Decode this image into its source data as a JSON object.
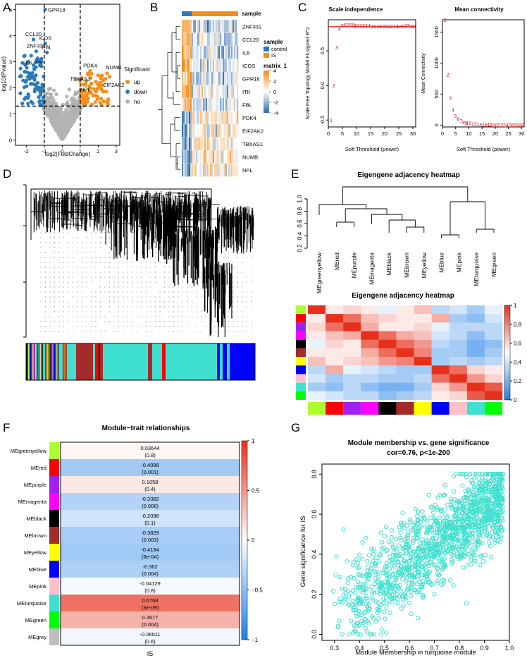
{
  "panels": {
    "A": "A",
    "B": "B",
    "C": "C",
    "D": "D",
    "E": "E",
    "F": "F",
    "G": "G"
  },
  "chart_data": [
    {
      "panel": "A",
      "type": "scatter",
      "xlabel": "log2(FoldChange)",
      "ylabel": "-log10(Pvalue)",
      "xlim": [
        -2.6,
        3.2
      ],
      "ylim": [
        -0.2,
        5.2
      ],
      "xticks": [
        "-2",
        "-1",
        "0",
        "1",
        "2",
        "3"
      ],
      "yticks": [
        "0",
        "1",
        "2",
        "3",
        "4",
        "5"
      ],
      "thresholds": {
        "x": [
          -1,
          1
        ],
        "y": 1.3
      },
      "legend": {
        "title": "Significant",
        "entries": [
          {
            "name": "up",
            "color": "#f28e1c"
          },
          {
            "name": "down",
            "color": "#2b7bba"
          },
          {
            "name": "no",
            "color": "#b3b3b3"
          }
        ]
      },
      "labels": [
        {
          "text": "GPR18",
          "x": -0.95,
          "y": 5.0
        },
        {
          "text": "CCL20",
          "x": -1.6,
          "y": 3.85
        },
        {
          "text": "ICOS",
          "x": -0.95,
          "y": 3.7
        },
        {
          "text": "ZNF331",
          "x": -1.45,
          "y": 3.4
        },
        {
          "text": "FBL",
          "x": -0.85,
          "y": 3.35
        },
        {
          "text": "IL6",
          "x": -1.9,
          "y": 3.0
        },
        {
          "text": "ITK",
          "x": -1.35,
          "y": 3.0
        },
        {
          "text": "PDK4",
          "x": 1.55,
          "y": 2.65
        },
        {
          "text": "NUMB",
          "x": 2.5,
          "y": 2.55
        },
        {
          "text": "TBXAS1",
          "x": 1.0,
          "y": 2.25
        },
        {
          "text": "EIF2AK2",
          "x": 2.2,
          "y": 2.1
        },
        {
          "text": "NPL",
          "x": 1.5,
          "y": 1.95
        }
      ]
    },
    {
      "panel": "B",
      "type": "heatmap",
      "rows": [
        "ZNF331",
        "CCL20",
        "IL6",
        "ICOS",
        "GPR18",
        "ITK",
        "FBL",
        "PDK4",
        "EIF2AK2",
        "TBXAS1",
        "NUMB",
        "NPL"
      ],
      "annotation": {
        "title": "sample",
        "entries": [
          {
            "name": "control",
            "color": "#2b7bba"
          },
          {
            "name": "IS",
            "color": "#f28e1c"
          }
        ]
      },
      "colorbar": {
        "title": "matrix_1",
        "ticks": [
          "4",
          "2",
          "0",
          "-2",
          "-4"
        ]
      }
    },
    {
      "panel": "C1",
      "type": "scatter",
      "title": "Scale independence",
      "xlabel": "Soft Threshold (power)",
      "ylabel": "Scale Free Topology Model Fit,signed R^2",
      "xticks": [
        "0",
        "5",
        "10",
        "15",
        "20",
        "25",
        "30"
      ],
      "yticks": [
        "-0.5",
        "0.0",
        "0.5"
      ],
      "xlim": [
        0,
        31
      ],
      "ylim": [
        -0.6,
        0.95
      ],
      "hline": 0.85,
      "points": [
        {
          "x": 1,
          "y": -0.5
        },
        {
          "x": 2,
          "y": 0.0
        },
        {
          "x": 3,
          "y": 0.55
        },
        {
          "x": 4,
          "y": 0.82
        },
        {
          "x": 5,
          "y": 0.87
        },
        {
          "x": 6,
          "y": 0.88
        },
        {
          "x": 7,
          "y": 0.88
        },
        {
          "x": 8,
          "y": 0.88
        },
        {
          "x": 9,
          "y": 0.88
        },
        {
          "x": 10,
          "y": 0.87
        },
        {
          "x": 12,
          "y": 0.87
        },
        {
          "x": 14,
          "y": 0.87
        },
        {
          "x": 16,
          "y": 0.86
        },
        {
          "x": 18,
          "y": 0.86
        },
        {
          "x": 20,
          "y": 0.86
        },
        {
          "x": 22,
          "y": 0.86
        },
        {
          "x": 24,
          "y": 0.86
        },
        {
          "x": 26,
          "y": 0.86
        },
        {
          "x": 28,
          "y": 0.87
        },
        {
          "x": 30,
          "y": 0.86
        }
      ]
    },
    {
      "panel": "C2",
      "type": "scatter",
      "title": "Mean connectivity",
      "xlabel": "Soft Threshold (power)",
      "ylabel": "Mean Connectivity",
      "xticks": [
        "0",
        "5",
        "10",
        "15",
        "20",
        "25",
        "30"
      ],
      "yticks": [
        "0",
        "500",
        "1000",
        "1500"
      ],
      "xlim": [
        0,
        31
      ],
      "ylim": [
        -30,
        1700
      ],
      "points": [
        {
          "x": 1,
          "y": 1700
        },
        {
          "x": 2,
          "y": 820
        },
        {
          "x": 3,
          "y": 440
        },
        {
          "x": 4,
          "y": 250
        },
        {
          "x": 5,
          "y": 150
        },
        {
          "x": 6,
          "y": 100
        },
        {
          "x": 7,
          "y": 70
        },
        {
          "x": 8,
          "y": 50
        },
        {
          "x": 9,
          "y": 40
        },
        {
          "x": 10,
          "y": 30
        },
        {
          "x": 12,
          "y": 20
        },
        {
          "x": 14,
          "y": 15
        },
        {
          "x": 16,
          "y": 10
        },
        {
          "x": 18,
          "y": 8
        },
        {
          "x": 20,
          "y": 6
        },
        {
          "x": 22,
          "y": 5
        },
        {
          "x": 24,
          "y": 4
        },
        {
          "x": 26,
          "y": 3
        },
        {
          "x": 28,
          "y": 2
        },
        {
          "x": 30,
          "y": 2
        }
      ]
    },
    {
      "panel": "E1",
      "type": "dendrogram",
      "title": "Eigengene adjacency heatmap",
      "yticks": [
        "0.2",
        "0.4",
        "0.6",
        "0.8",
        "1.0"
      ],
      "leaves": [
        "MEgreenyellow",
        "MEred",
        "MEpurple",
        "MEmagenta",
        "MEblack",
        "MEbrown",
        "MEyellow",
        "MEblue",
        "MEpink",
        "MEturquoise",
        "MEgreen"
      ]
    },
    {
      "panel": "E2",
      "type": "heatmap",
      "title": "Eigengene adjacency heatmap",
      "module_colors": [
        "#adff2f",
        "#ff0000",
        "#a020f0",
        "#ff00ff",
        "#000000",
        "#a52a2a",
        "#ffff00",
        "#0000ff",
        "#ffc0cb",
        "#40e0d0",
        "#00ff00"
      ],
      "colorbar": {
        "ticks": [
          "1",
          "0.8",
          "0.6",
          "0.4",
          "0.2",
          "0"
        ]
      },
      "matrix": [
        [
          1,
          0.55,
          0.6,
          0.55,
          0.45,
          0.55,
          0.65,
          0.35,
          0.4,
          0.3,
          0.45
        ],
        [
          0.55,
          1,
          0.85,
          0.65,
          0.6,
          0.55,
          0.55,
          0.7,
          0.3,
          0.25,
          0.4
        ],
        [
          0.6,
          0.85,
          1,
          0.7,
          0.55,
          0.55,
          0.6,
          0.45,
          0.35,
          0.35,
          0.35
        ],
        [
          0.55,
          0.65,
          0.7,
          1,
          0.85,
          0.7,
          0.65,
          0.4,
          0.35,
          0.25,
          0.35
        ],
        [
          0.45,
          0.6,
          0.55,
          0.85,
          1,
          0.85,
          0.75,
          0.35,
          0.3,
          0.2,
          0.25
        ],
        [
          0.55,
          0.55,
          0.55,
          0.7,
          0.85,
          1,
          0.8,
          0.3,
          0.3,
          0.2,
          0.3
        ],
        [
          0.65,
          0.55,
          0.6,
          0.65,
          0.75,
          0.8,
          1,
          0.3,
          0.35,
          0.3,
          0.35
        ],
        [
          0.35,
          0.7,
          0.45,
          0.4,
          0.35,
          0.3,
          0.3,
          1,
          0.85,
          0.6,
          0.55
        ],
        [
          0.4,
          0.3,
          0.35,
          0.35,
          0.3,
          0.3,
          0.35,
          0.85,
          1,
          0.75,
          0.6
        ],
        [
          0.3,
          0.25,
          0.35,
          0.25,
          0.2,
          0.2,
          0.3,
          0.6,
          0.75,
          1,
          0.9
        ],
        [
          0.45,
          0.4,
          0.35,
          0.35,
          0.25,
          0.3,
          0.35,
          0.55,
          0.6,
          0.9,
          1
        ]
      ]
    },
    {
      "panel": "F",
      "type": "heatmap",
      "title": "Module−trait relationships",
      "xlabel": "IS",
      "colorbar": {
        "ticks": [
          "1",
          "0.5",
          "0",
          "−0.5",
          "−1"
        ]
      },
      "rows": [
        {
          "module": "MEgreenyellow",
          "color": "#adff2f",
          "cor": "0.03644",
          "p": "(0.8)",
          "value": 0.03644
        },
        {
          "module": "MEred",
          "color": "#ff0000",
          "cor": "-0.4098",
          "p": "(0.001)",
          "value": -0.4098
        },
        {
          "module": "MEpurple",
          "color": "#a020f0",
          "cor": "0.1058",
          "p": "(0.4)",
          "value": 0.1058
        },
        {
          "module": "MEmagenta",
          "color": "#ff00ff",
          "cor": "-0.3382",
          "p": "(0.008)",
          "value": -0.3382
        },
        {
          "module": "MEblack",
          "color": "#000000",
          "cor": "-0.2098",
          "p": "(0.1)",
          "value": -0.2098
        },
        {
          "module": "MEbrown",
          "color": "#a52a2a",
          "cor": "-0.3829",
          "p": "(0.003)",
          "value": -0.3829
        },
        {
          "module": "MEyellow",
          "color": "#ffff00",
          "cor": "-0.4184",
          "p": "(9e-04)",
          "value": -0.4184
        },
        {
          "module": "MEblue",
          "color": "#0000ff",
          "cor": "-0.362",
          "p": "(0.004)",
          "value": -0.362
        },
        {
          "module": "MEpink",
          "color": "#ffc0cb",
          "cor": "-0.04129",
          "p": "(0.8)",
          "value": -0.04129
        },
        {
          "module": "MEturquoise",
          "color": "#40e0d0",
          "cor": "0.6768",
          "p": "(3e-09)",
          "value": 0.6768
        },
        {
          "module": "MEgreen",
          "color": "#00ff00",
          "cor": "0.3677",
          "p": "(0.004)",
          "value": 0.3677
        },
        {
          "module": "MEgrey",
          "color": "#bebebe",
          "cor": "-0.06011",
          "p": "(0.6)",
          "value": -0.06011
        }
      ]
    },
    {
      "panel": "G",
      "type": "scatter",
      "title": "Module membership vs. gene significance",
      "subtitle": "cor=0.76, p<1e-200",
      "xlabel": "Module Membership in turquoise module",
      "ylabel": "Gene significance for IS",
      "xticks": [
        "0.3",
        "0.4",
        "0.5",
        "0.6",
        "0.7",
        "0.8",
        "0.9",
        "1.0"
      ],
      "yticks": [
        "0.0",
        "0.2",
        "0.4",
        "0.6",
        "0.8"
      ],
      "xlim": [
        0.25,
        1.0
      ],
      "ylim": [
        -0.03,
        0.85
      ],
      "color": "#40e0d0",
      "trend": {
        "slope": 0.9,
        "intercept": -0.18,
        "noise": 0.11,
        "n": 1400
      }
    }
  ]
}
